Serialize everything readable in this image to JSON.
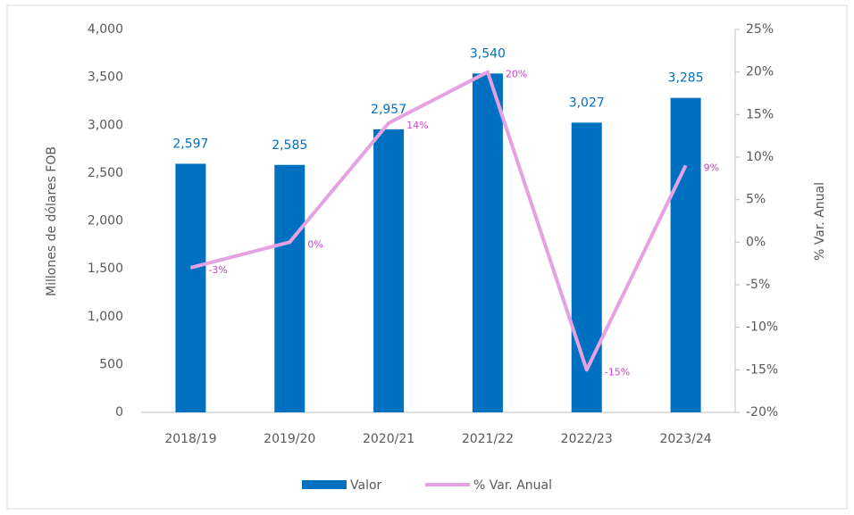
{
  "chart_data": {
    "type": "bar-line",
    "categories": [
      "2018/19",
      "2019/20",
      "2020/21",
      "2021/22",
      "2022/23",
      "2023/24"
    ],
    "series": [
      {
        "name": "Valor",
        "type": "bar",
        "color": "#0070c0",
        "values": [
          2597,
          2585,
          2957,
          3540,
          3027,
          3285
        ],
        "value_labels": [
          "2,597",
          "2,585",
          "2,957",
          "3,540",
          "3,027",
          "3,285"
        ]
      },
      {
        "name": "% Var. Anual",
        "type": "line",
        "axis": "y2",
        "color": "#e6a1e3",
        "values": [
          -3,
          0,
          14,
          20,
          -15,
          9
        ],
        "value_labels": [
          "-3%",
          "0%",
          "14%",
          "20%",
          "-15%",
          "9%"
        ]
      }
    ],
    "ylabel": "Millones de dólares FOB",
    "y2label": "% Var. Anual",
    "ylim": [
      0,
      4000
    ],
    "yticks": [
      0,
      500,
      {
        "value": 1000,
        "label": "1,000"
      },
      {
        "value": 1500,
        "label": "1,500"
      },
      {
        "value": 2000,
        "label": "2,000"
      },
      {
        "value": 2500,
        "label": "2,500"
      },
      {
        "value": 3000,
        "label": "3,000"
      },
      {
        "value": 3500,
        "label": "3,500"
      },
      {
        "value": 4000,
        "label": "4,000"
      }
    ],
    "y2lim": [
      -20,
      25
    ],
    "y2ticks": [
      {
        "value": -20,
        "label": "-20%"
      },
      {
        "value": -15,
        "label": "-15%"
      },
      {
        "value": -10,
        "label": "-10%"
      },
      {
        "value": -5,
        "label": "-5%"
      },
      {
        "value": 0,
        "label": "0%"
      },
      {
        "value": 5,
        "label": "5%"
      },
      {
        "value": 10,
        "label": "10%"
      },
      {
        "value": 15,
        "label": "15%"
      },
      {
        "value": 20,
        "label": "20%"
      },
      {
        "value": 25,
        "label": "25%"
      }
    ],
    "grid": false,
    "legend": "bottom"
  }
}
